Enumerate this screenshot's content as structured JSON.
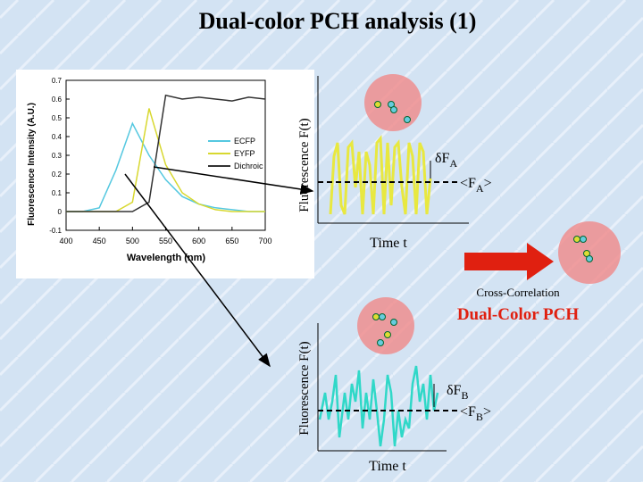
{
  "title": "Dual-color PCH analysis (1)",
  "spectrum": {
    "y_label": "Fluorescence Intensity (A.U.)",
    "x_label": "Wavelength (nm)",
    "x": [
      400,
      425,
      450,
      475,
      500,
      525,
      550,
      575,
      600,
      625,
      650,
      675,
      700
    ],
    "xlim": [
      400,
      700
    ],
    "xticks": [
      400,
      450,
      500,
      550,
      600,
      650,
      700
    ],
    "ylim": [
      -0.1,
      0.7
    ],
    "yticks": [
      -0.1,
      0.0,
      0.1,
      0.2,
      0.3,
      0.4,
      0.5,
      0.6,
      0.7
    ],
    "series": [
      {
        "name": "ECFP",
        "color": "#55c8e0",
        "values": [
          0,
          0,
          0.02,
          0.22,
          0.47,
          0.3,
          0.17,
          0.08,
          0.04,
          0.02,
          0.01,
          0,
          0
        ]
      },
      {
        "name": "EYFP",
        "color": "#d8d830",
        "values": [
          0,
          0,
          0,
          0,
          0.05,
          0.55,
          0.25,
          0.1,
          0.04,
          0.01,
          0,
          0,
          0
        ]
      },
      {
        "name": "Dichroic",
        "color": "#333333",
        "values": [
          0,
          0,
          0,
          0,
          0,
          0.05,
          0.62,
          0.6,
          0.61,
          0.6,
          0.59,
          0.61,
          0.6
        ]
      }
    ]
  },
  "panel_a": {
    "axis_label": "Fluorescence F(t)",
    "time_label": "Time t",
    "delta": "δF",
    "delta_sub": "A",
    "mean_open": "<F",
    "mean_sub": "A",
    "mean_close": ">"
  },
  "cross": {
    "label": "Cross-Correlation",
    "title": "Dual-Color PCH"
  },
  "panel_b": {
    "axis_label": "Fluorescence F(t)",
    "time_label": "Time t",
    "delta": "δF",
    "delta_sub": "B",
    "mean_open": "<F",
    "mean_sub": "B",
    "mean_close": ">"
  }
}
